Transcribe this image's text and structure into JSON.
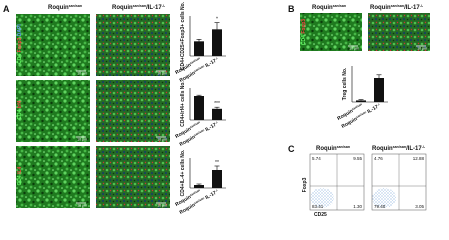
{
  "figure": {
    "panel_labels": [
      "A",
      "B",
      "C"
    ],
    "header_left": {
      "base": "Roquin",
      "sup": "san/san"
    },
    "header_right": {
      "base": "Roquin",
      "sup": "san/san",
      "suffix": "/IL-17",
      "sup2": "-/-"
    },
    "row_labels": [
      [
        "CD4",
        "Foxp3",
        "DAPI"
      ],
      [
        "CD4",
        "Irf4"
      ],
      [
        "CD4",
        "IL4"
      ]
    ],
    "panel_b_label": [
      "CD4",
      "Foxp3"
    ],
    "scale_bar": "10 µm",
    "flow_y_label": "Foxp3",
    "flow_x_label": "CD25",
    "flow_left": [
      "5.74",
      "9.55",
      "83.41",
      "1.30"
    ],
    "flow_right": [
      "4.76",
      "12.88",
      "79.40",
      "3.05"
    ]
  },
  "chart_data": [
    {
      "type": "bar",
      "y_label": "CD4+CD25+Foxp3+ cells No.",
      "annotation": "*",
      "categories": [
        {
          "base": "Roquin",
          "sup": "san/san"
        },
        {
          "base": "Roquin",
          "sup": "san/san",
          "suffix": " IL-17",
          "sup2": "-/-"
        }
      ],
      "values": [
        22,
        40
      ],
      "errors": [
        3,
        10
      ],
      "color": "#111111",
      "ylim": [
        0,
        60
      ]
    },
    {
      "type": "bar",
      "y_label": "CD4+Irf4+ cells No.",
      "annotation": "***",
      "categories": [
        {
          "base": "Roquin",
          "sup": "san/san"
        },
        {
          "base": "Roquin",
          "sup": "san/san",
          "suffix": " IL-17",
          "sup2": "-/-"
        }
      ],
      "values": [
        30,
        14
      ],
      "errors": [
        1,
        2
      ],
      "color": "#111111",
      "ylim": [
        0,
        40
      ]
    },
    {
      "type": "bar",
      "y_label": "CD4+IL-4+ cells No.",
      "annotation": "**",
      "categories": [
        {
          "base": "Roquin",
          "sup": "san/san"
        },
        {
          "base": "Roquin",
          "sup": "san/san",
          "suffix": " IL-17",
          "sup2": "-/-"
        }
      ],
      "values": [
        3,
        18
      ],
      "errors": [
        1,
        4
      ],
      "color": "#111111",
      "ylim": [
        0,
        30
      ]
    },
    {
      "type": "bar",
      "y_label": "Treg cells No.",
      "categories": [
        {
          "base": "Roquin",
          "sup": "san/san"
        },
        {
          "base": "Roquin",
          "sup": "san/san",
          "suffix": " IL-17",
          "sup2": "-/-"
        }
      ],
      "values": [
        2,
        30
      ],
      "errors": [
        1,
        4
      ],
      "color": "#111111",
      "ylim": [
        0,
        45
      ]
    }
  ]
}
